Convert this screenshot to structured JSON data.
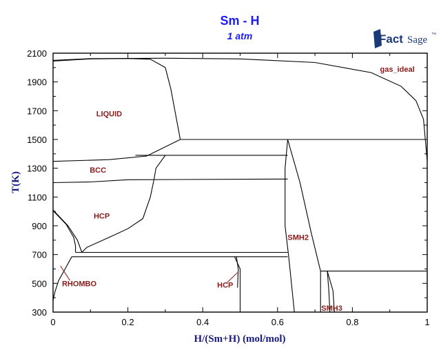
{
  "header": {
    "title": "Sm - H",
    "subtitle": "1 atm",
    "logo_text_bold": "Fact",
    "logo_text": "Sage",
    "logo_mark": "™"
  },
  "colors": {
    "title": "#1a1aff",
    "axis_title": "#1a1a80",
    "region_label": "#8b1a1a",
    "lines": "#000000",
    "logo": "#1a3a7a"
  },
  "chart_data": {
    "type": "line",
    "subtype": "phase_diagram",
    "title": "Sm - H",
    "subtitle": "1 atm",
    "xlabel": "H/(Sm+H) (mol/mol)",
    "ylabel": "T(K)",
    "xlim": [
      0,
      1
    ],
    "ylim": [
      300,
      2100
    ],
    "x_ticks": [
      0,
      0.2,
      0.4,
      0.6,
      0.8,
      1
    ],
    "x_tick_labels": [
      "0",
      "0.2",
      "0.4",
      "0.6",
      "0.8",
      "1"
    ],
    "y_ticks": [
      300,
      500,
      700,
      900,
      1100,
      1300,
      1500,
      1700,
      1900,
      2100
    ],
    "y_tick_labels": [
      "300",
      "500",
      "700",
      "900",
      "1100",
      "1300",
      "1500",
      "1700",
      "1900",
      "2100"
    ],
    "grid": false,
    "legend": null,
    "region_labels": [
      {
        "text": "LIQUID",
        "x": 0.15,
        "T": 1680
      },
      {
        "text": "gas_ideal",
        "x": 0.92,
        "T": 1990
      },
      {
        "text": "BCC",
        "x": 0.12,
        "T": 1290
      },
      {
        "text": "HCP",
        "x": 0.13,
        "T": 970
      },
      {
        "text": "RHOMBO",
        "x": 0.07,
        "T": 500
      },
      {
        "text": "HCP",
        "x": 0.46,
        "T": 490
      },
      {
        "text": "SMH2",
        "x": 0.655,
        "T": 820
      },
      {
        "text": "SMH3",
        "x": 0.745,
        "T": 330
      }
    ],
    "invariants_T": [
      2065,
      1500,
      1390,
      1225,
      715,
      685,
      585
    ],
    "series": [
      {
        "name": "gas/liquid boundary (top)",
        "points": [
          [
            0,
            2050
          ],
          [
            0.1,
            2062
          ],
          [
            0.3,
            2065
          ],
          [
            0.5,
            2060
          ],
          [
            0.7,
            2035
          ],
          [
            0.85,
            1965
          ],
          [
            0.93,
            1870
          ],
          [
            0.97,
            1770
          ],
          [
            0.99,
            1640
          ],
          [
            1.0,
            1350
          ]
        ]
      },
      {
        "name": "liquidus Sm side",
        "points": [
          [
            0,
            2045
          ],
          [
            0.1,
            2060
          ],
          [
            0.2,
            2063
          ],
          [
            0.26,
            2058
          ],
          [
            0.3,
            2000
          ],
          [
            0.315,
            1850
          ],
          [
            0.34,
            1500
          ]
        ]
      },
      {
        "name": "T=1500 invariant",
        "points": [
          [
            0.34,
            1500
          ],
          [
            1.0,
            1500
          ]
        ]
      },
      {
        "name": "liquid-BCC",
        "points": [
          [
            0,
            1348
          ],
          [
            0.15,
            1360
          ],
          [
            0.25,
            1385
          ],
          [
            0.34,
            1500
          ]
        ]
      },
      {
        "name": "T=1390 line",
        "points": [
          [
            0.22,
            1390
          ],
          [
            0.627,
            1390
          ]
        ]
      },
      {
        "name": "BCC-HCP lower",
        "points": [
          [
            0,
            1200
          ],
          [
            0.1,
            1205
          ],
          [
            0.2,
            1220
          ],
          [
            0.627,
            1225
          ]
        ]
      },
      {
        "name": "BCC right boundary",
        "points": [
          [
            0.3,
            1390
          ],
          [
            0.275,
            1300
          ],
          [
            0.27,
            1225
          ]
        ]
      },
      {
        "name": "HCP solvus",
        "points": [
          [
            0.27,
            1225
          ],
          [
            0.26,
            1100
          ],
          [
            0.24,
            950
          ],
          [
            0.2,
            880
          ],
          [
            0.15,
            820
          ],
          [
            0.09,
            750
          ],
          [
            0.077,
            715
          ]
        ]
      },
      {
        "name": "HCP-RHOMBO left",
        "points": [
          [
            0,
            1010
          ],
          [
            0.04,
            900
          ],
          [
            0.065,
            800
          ],
          [
            0.077,
            715
          ]
        ]
      },
      {
        "name": "HCP-RHOMBO right",
        "points": [
          [
            0,
            1005
          ],
          [
            0.035,
            910
          ],
          [
            0.055,
            820
          ],
          [
            0.06,
            760
          ],
          [
            0.06,
            715
          ]
        ]
      },
      {
        "name": "T=715 line",
        "points": [
          [
            0.06,
            715
          ],
          [
            0.627,
            715
          ]
        ]
      },
      {
        "name": "T=685 line",
        "points": [
          [
            0.05,
            685
          ],
          [
            0.627,
            685
          ]
        ]
      },
      {
        "name": "RHOMBO solvus",
        "points": [
          [
            0,
            380
          ],
          [
            0.005,
            440
          ],
          [
            0.015,
            520
          ],
          [
            0.03,
            590
          ],
          [
            0.05,
            685
          ]
        ]
      },
      {
        "name": "HCP(H-rich) left",
        "points": [
          [
            0.485,
            685
          ],
          [
            0.5,
            600
          ],
          [
            0.5,
            300
          ]
        ]
      },
      {
        "name": "HCP(H-rich) right",
        "points": [
          [
            0.49,
            685
          ],
          [
            0.495,
            600
          ],
          [
            0.493,
            470
          ]
        ]
      },
      {
        "name": "SMH2 left",
        "points": [
          [
            0.627,
            1500
          ],
          [
            0.62,
            1300
          ],
          [
            0.62,
            900
          ],
          [
            0.63,
            680
          ],
          [
            0.645,
            300
          ]
        ]
      },
      {
        "name": "SMH2 right",
        "points": [
          [
            0.627,
            1500
          ],
          [
            0.66,
            1200
          ],
          [
            0.69,
            850
          ],
          [
            0.715,
            585
          ]
        ]
      },
      {
        "name": "T=585 line",
        "points": [
          [
            0.715,
            585
          ],
          [
            1.0,
            585
          ]
        ]
      },
      {
        "name": "SMH3 left",
        "points": [
          [
            0.715,
            585
          ],
          [
            0.715,
            300
          ]
        ]
      },
      {
        "name": "SMH3 inner",
        "points": [
          [
            0.733,
            585
          ],
          [
            0.737,
            450
          ],
          [
            0.74,
            300
          ]
        ]
      },
      {
        "name": "SMH3 right",
        "points": [
          [
            0.733,
            585
          ],
          [
            0.748,
            450
          ],
          [
            0.752,
            300
          ]
        ]
      }
    ]
  }
}
